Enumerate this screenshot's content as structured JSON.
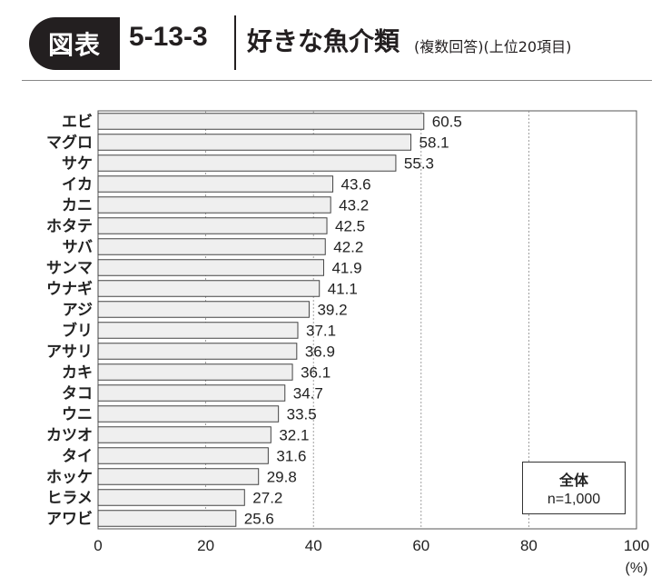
{
  "header": {
    "badge": "図表",
    "figure_number": "5-13-3",
    "title": "好きな魚介類",
    "subtitle": "(複数回答)(上位20項目)"
  },
  "legend": {
    "title": "全体",
    "n": "n=1,000"
  },
  "chart_data": {
    "type": "bar",
    "orientation": "horizontal",
    "categories": [
      "エビ",
      "マグロ",
      "サケ",
      "イカ",
      "カニ",
      "ホタテ",
      "サバ",
      "サンマ",
      "ウナギ",
      "アジ",
      "ブリ",
      "アサリ",
      "カキ",
      "タコ",
      "ウニ",
      "カツオ",
      "タイ",
      "ホッケ",
      "ヒラメ",
      "アワビ"
    ],
    "values": [
      60.5,
      58.1,
      55.3,
      43.6,
      43.2,
      42.5,
      42.2,
      41.9,
      41.1,
      39.2,
      37.1,
      36.9,
      36.1,
      34.7,
      33.5,
      32.1,
      31.6,
      29.8,
      27.2,
      25.6
    ],
    "value_labels": [
      "60.5",
      "58.1",
      "55.3",
      "43.6",
      "43.2",
      "42.5",
      "42.2",
      "41.9",
      "41.1",
      "39.2",
      "37.1",
      "36.9",
      "36.1",
      "34.7",
      "33.5",
      "32.1",
      "31.6",
      "29.8",
      "27.2",
      "25.6"
    ],
    "xlim": [
      0,
      100
    ],
    "xticks": [
      "0",
      "20",
      "40",
      "60",
      "80",
      "100"
    ],
    "xunit": "(%)",
    "grid": true,
    "bar_color": "#efefef",
    "bar_border_color": "#444444"
  }
}
